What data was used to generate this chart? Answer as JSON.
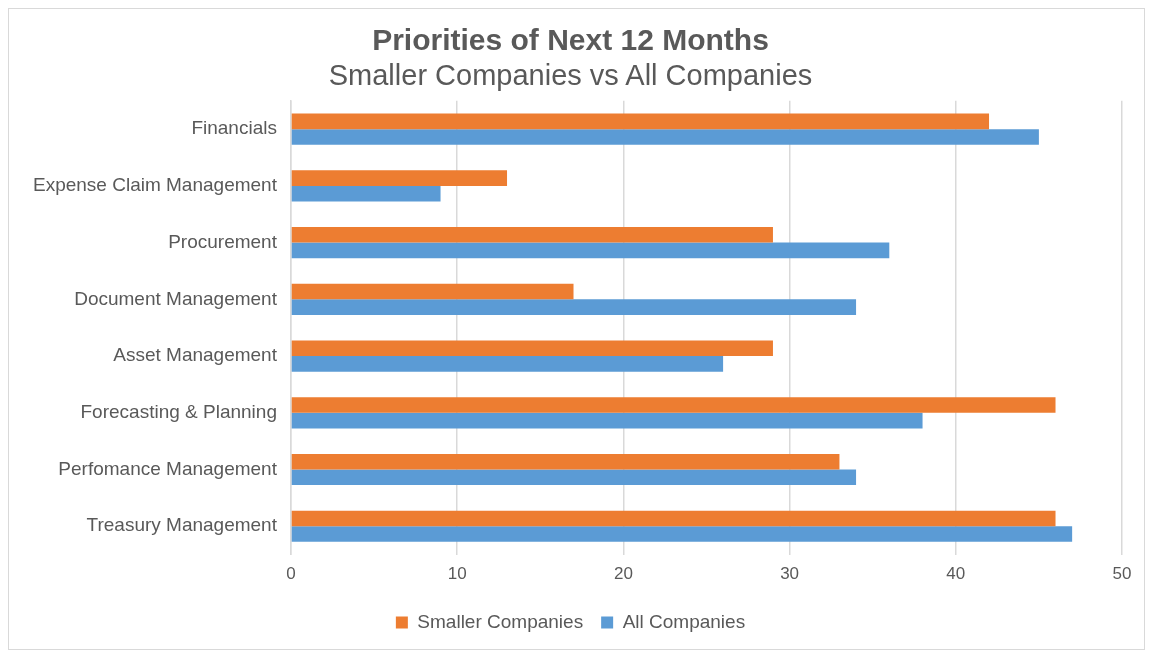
{
  "chart_data": {
    "type": "bar",
    "orientation": "horizontal",
    "title": "Priorities of Next 12 Months",
    "subtitle": "Smaller Companies vs All Companies",
    "categories": [
      "Financials",
      "Expense Claim Management",
      "Procurement",
      "Document Management",
      "Asset Management",
      "Forecasting & Planning",
      "Perfomance Management",
      "Treasury Management"
    ],
    "series": [
      {
        "name": "Smaller Companies",
        "color": "#ed7d31",
        "values": [
          42,
          13,
          29,
          17,
          29,
          46,
          33,
          46
        ]
      },
      {
        "name": "All Companies",
        "color": "#5b9bd5",
        "values": [
          45,
          9,
          36,
          34,
          26,
          38,
          34,
          47
        ]
      }
    ],
    "xlim": [
      0,
      50
    ],
    "xticks": [
      0,
      10,
      20,
      30,
      40,
      50
    ],
    "grid": "x",
    "legend": "bottom"
  }
}
